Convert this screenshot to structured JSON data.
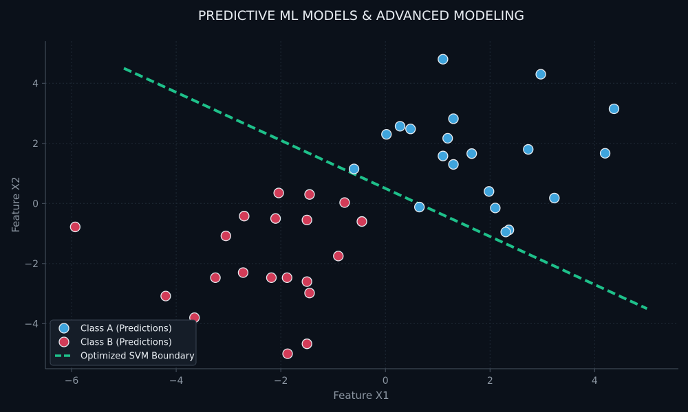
{
  "chart_data": {
    "type": "scatter",
    "title": "PREDICTIVE ML MODELS & ADVANCED MODELING",
    "xlabel": "Feature X1",
    "ylabel": "Feature X2",
    "xlim": [
      -6.5,
      5.6
    ],
    "ylim": [
      -5.5,
      5.4
    ],
    "xticks": [
      -6,
      -4,
      -2,
      0,
      2,
      4
    ],
    "yticks": [
      -4,
      -2,
      0,
      2,
      4
    ],
    "tick_labels_x": [
      "−6",
      "−4",
      "−2",
      "0",
      "2",
      "4"
    ],
    "tick_labels_y": [
      "−4",
      "−2",
      "0",
      "2",
      "4"
    ],
    "grid": true,
    "legend_position": "bottom-left",
    "series": [
      {
        "name": "Class A (Predictions)",
        "color": "#3fa4dc",
        "points": [
          {
            "x": 1.1,
            "y": 4.8
          },
          {
            "x": 2.97,
            "y": 4.3
          },
          {
            "x": 4.37,
            "y": 3.15
          },
          {
            "x": 1.3,
            "y": 2.82
          },
          {
            "x": 0.28,
            "y": 2.57
          },
          {
            "x": 0.48,
            "y": 2.48
          },
          {
            "x": 0.02,
            "y": 2.3
          },
          {
            "x": 1.19,
            "y": 2.17
          },
          {
            "x": 1.1,
            "y": 1.58
          },
          {
            "x": 1.65,
            "y": 1.66
          },
          {
            "x": 2.73,
            "y": 1.8
          },
          {
            "x": 4.2,
            "y": 1.67
          },
          {
            "x": 1.3,
            "y": 1.3
          },
          {
            "x": -0.6,
            "y": 1.15
          },
          {
            "x": 1.98,
            "y": 0.4
          },
          {
            "x": 3.23,
            "y": 0.18
          },
          {
            "x": 0.65,
            "y": -0.12
          },
          {
            "x": 2.1,
            "y": -0.15
          },
          {
            "x": 2.36,
            "y": -0.88
          },
          {
            "x": 2.3,
            "y": -0.95
          }
        ]
      },
      {
        "name": "Class B (Predictions)",
        "color": "#d23c58",
        "points": [
          {
            "x": -2.04,
            "y": 0.35
          },
          {
            "x": -1.45,
            "y": 0.3
          },
          {
            "x": -0.78,
            "y": 0.03
          },
          {
            "x": -2.7,
            "y": -0.42
          },
          {
            "x": -2.1,
            "y": -0.5
          },
          {
            "x": -1.5,
            "y": -0.55
          },
          {
            "x": -0.45,
            "y": -0.6
          },
          {
            "x": -5.93,
            "y": -0.78
          },
          {
            "x": -3.05,
            "y": -1.08
          },
          {
            "x": -0.9,
            "y": -1.75
          },
          {
            "x": -2.72,
            "y": -2.3
          },
          {
            "x": -3.25,
            "y": -2.47
          },
          {
            "x": -2.18,
            "y": -2.47
          },
          {
            "x": -1.88,
            "y": -2.47
          },
          {
            "x": -1.5,
            "y": -2.6
          },
          {
            "x": -1.45,
            "y": -2.98
          },
          {
            "x": -4.2,
            "y": -3.08
          },
          {
            "x": -3.65,
            "y": -3.8
          },
          {
            "x": -1.5,
            "y": -4.67
          },
          {
            "x": -1.87,
            "y": -5.0
          }
        ]
      }
    ],
    "boundary": {
      "name": "Optimized SVM Boundary",
      "color": "#1ec08a",
      "style": "dashed",
      "points": [
        {
          "x": -5.0,
          "y": 4.5
        },
        {
          "x": 5.0,
          "y": -3.5
        }
      ]
    }
  }
}
